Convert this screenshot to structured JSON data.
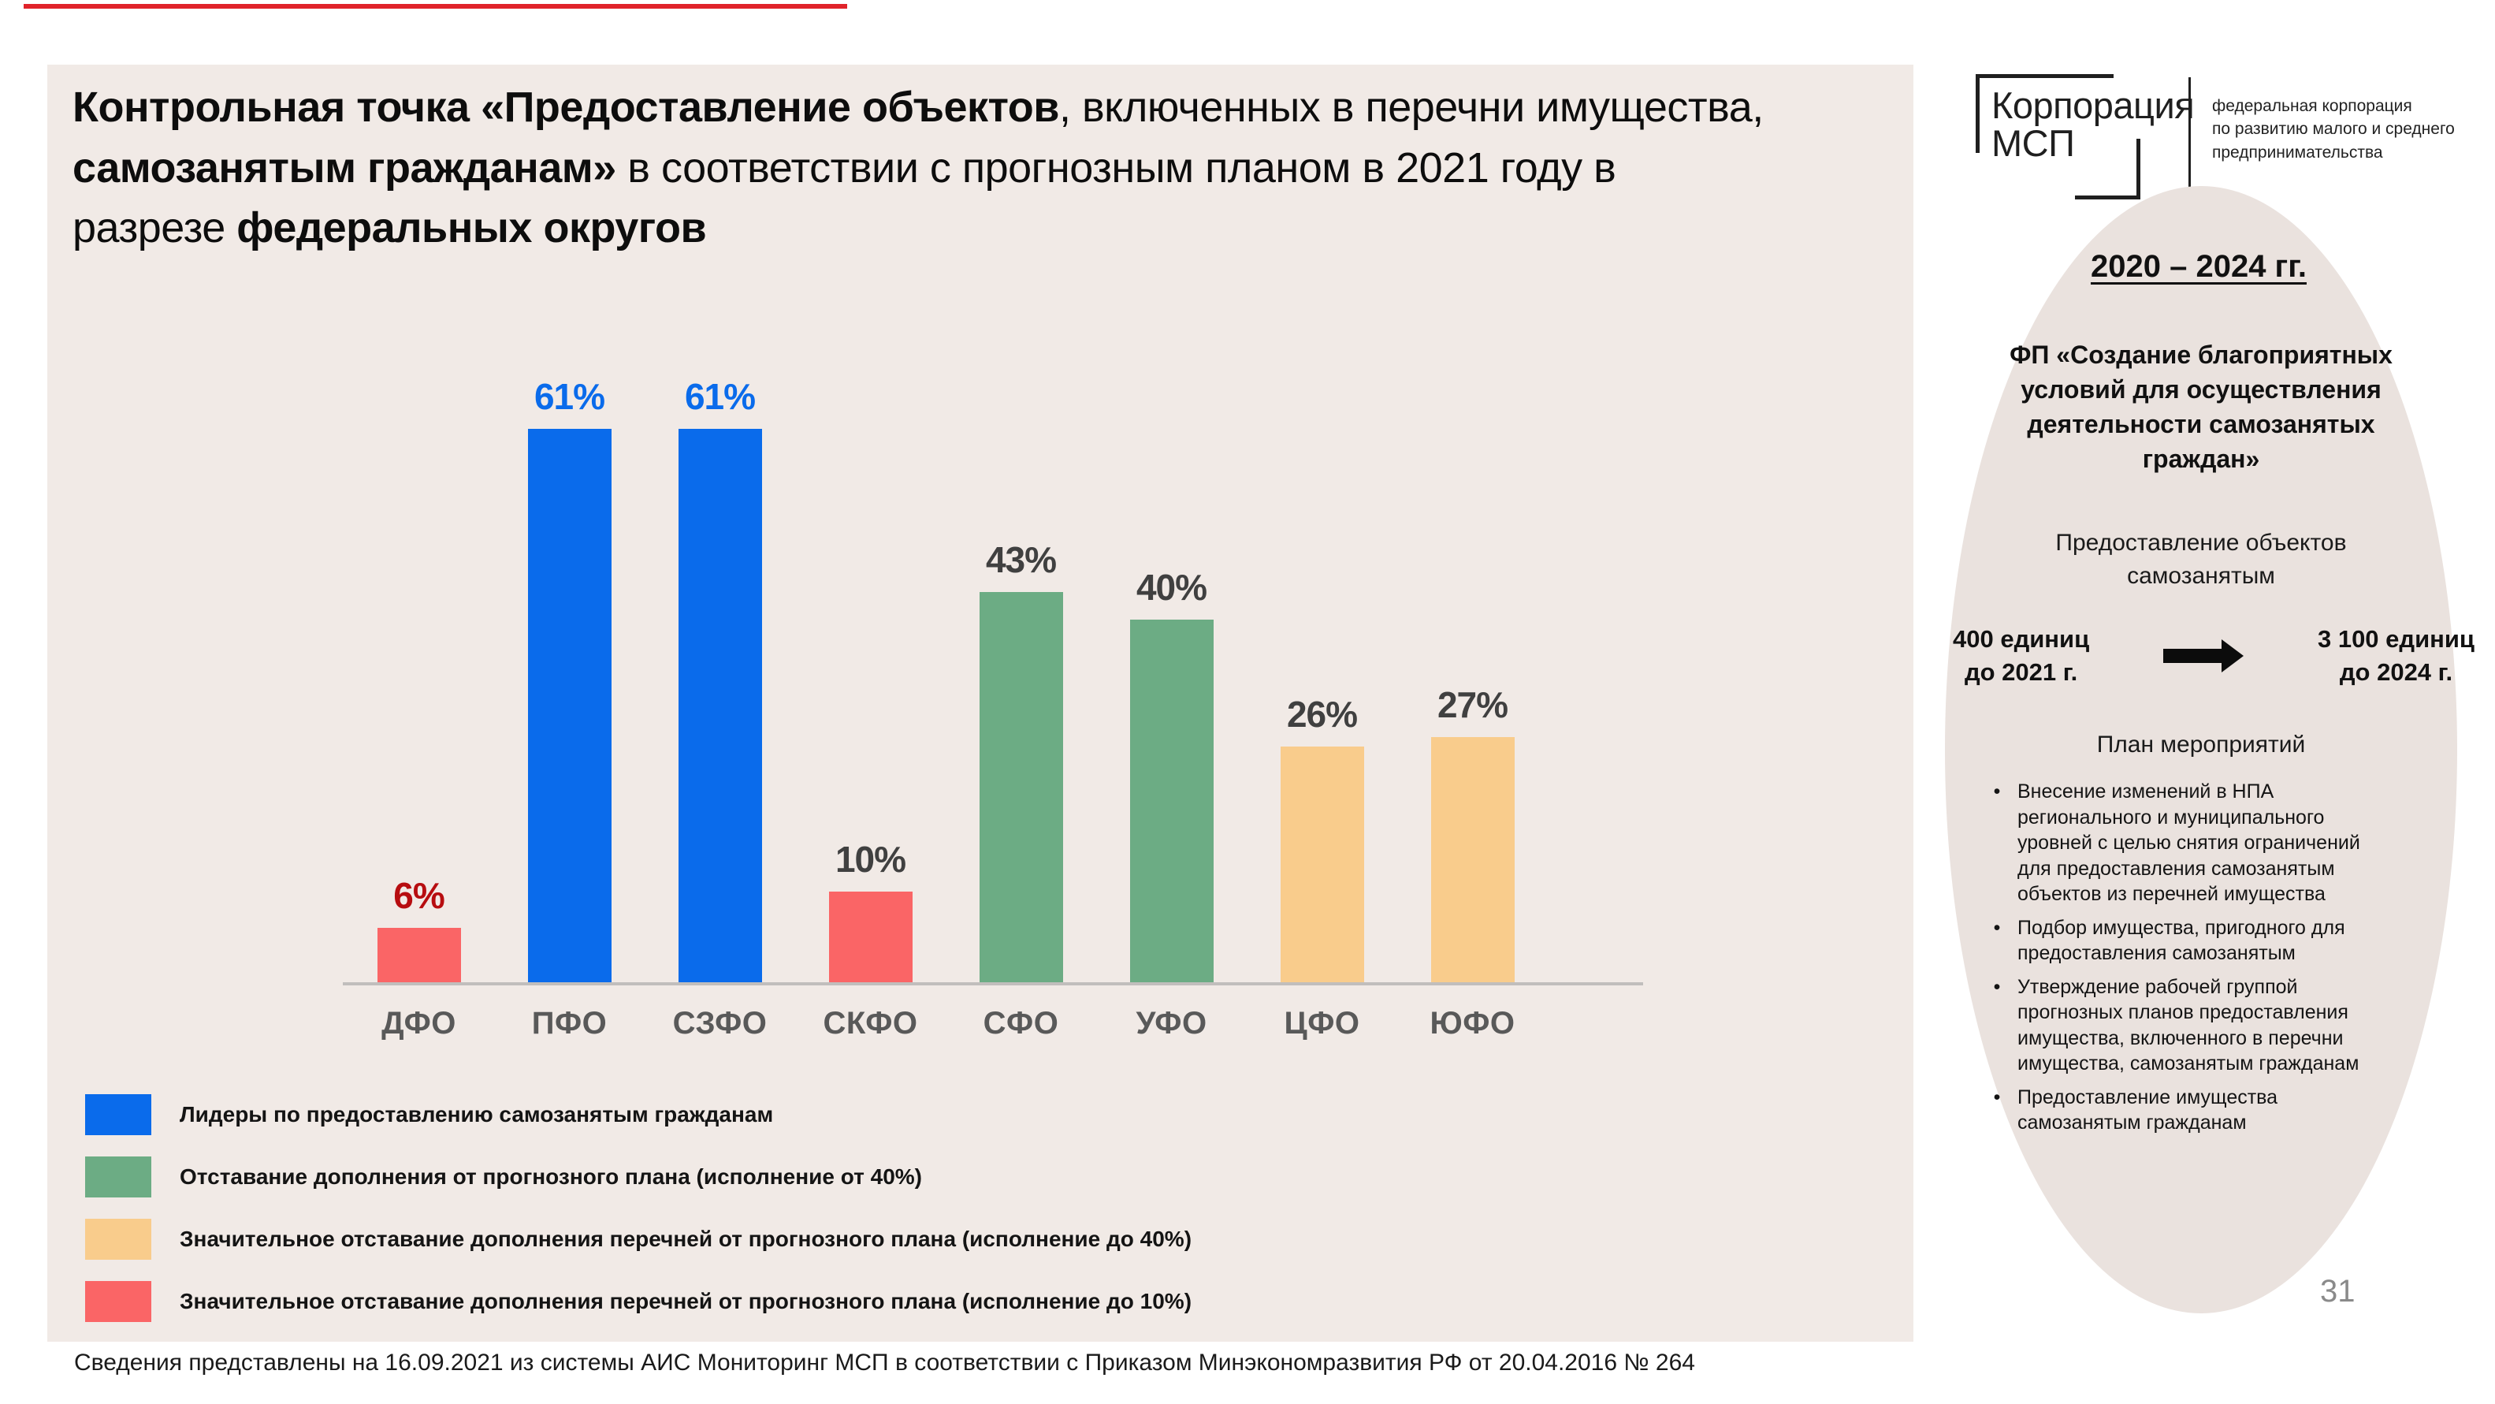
{
  "title": {
    "segments": [
      {
        "t": "Контрольная точка «Предоставление объектов",
        "b": true
      },
      {
        "t": ", включенных в перечни имущества, ",
        "b": false
      },
      {
        "t": "самозанятым гражданам»",
        "b": true
      },
      {
        "t": " в соответствии с прогнозным планом в 2021 году в разрезе ",
        "b": false
      },
      {
        "t": "федеральных округов",
        "b": true
      }
    ]
  },
  "logo": {
    "name_line1": "Корпорация",
    "name_line2": "МСП",
    "tagline": "федеральная корпорация\nпо развитию малого и среднего\nпредпринимательства"
  },
  "chart_data": {
    "type": "bar",
    "title": "Контрольная точка «Предоставление объектов, включенных в перечни имущества, самозанятым гражданам» в соответствии с прогнозным планом в 2021 году в разрезе федеральных округов",
    "categories": [
      "ДФО",
      "ПФО",
      "СЗФО",
      "СКФО",
      "СФО",
      "УФО",
      "ЦФО",
      "ЮФО"
    ],
    "values": [
      6,
      61,
      61,
      10,
      43,
      40,
      26,
      27
    ],
    "unit": "%",
    "bar_colors": [
      "#fa6566",
      "#0a6beb",
      "#0a6beb",
      "#fa6566",
      "#6cac84",
      "#6cac84",
      "#f9cc8c",
      "#f9cc8c"
    ],
    "label_colors": [
      "#b70d10",
      "#0a6beb",
      "#0a6beb",
      "#404040",
      "#404040",
      "#404040",
      "#404040",
      "#404040"
    ],
    "ylim": [
      0,
      65
    ],
    "grid": false,
    "xlabel": "",
    "ylabel": "",
    "legend_position": "bottom-left"
  },
  "legend": [
    {
      "color": "#0a6beb",
      "label": "Лидеры по предоставлению самозанятым гражданам"
    },
    {
      "color": "#6cac84",
      "label": "Отставание дополнения от прогнозного плана (исполнение от 40%)"
    },
    {
      "color": "#f9cc8c",
      "label": "Значительное отставание дополнения перечней от прогнозного плана (исполнение до 40%)"
    },
    {
      "color": "#fa6566",
      "label": "Значительное отставание дополнения перечней от прогнозного плана (исполнение до 10%)"
    }
  ],
  "sidebar": {
    "period": "2020 – 2024 гг.",
    "program": "ФП «Создание благоприятных условий для осуществления деятельности самозанятых граждан»",
    "subtitle": "Предоставление объектов самозанятым",
    "from_unit": "400 единиц\nдо 2021 г.",
    "to_unit": "3 100 единиц\nдо 2024 г.",
    "plan_title": "План мероприятий",
    "plan_items": [
      "Внесение изменений в НПА регионального и муниципального уровней с целью снятия ограничений для предоставления самозанятым объектов из перечней имущества",
      "Подбор имущества, пригодного для предоставления самозанятым",
      "Утверждение рабочей группой прогнозных планов предоставления имущества, включенного в перечни имущества, самозанятым гражданам",
      "Предоставление имущества самозанятым гражданам"
    ]
  },
  "footer": "Сведения представлены на 16.09.2021 из системы АИС Мониторинг МСП в соответствии с Приказом Минэкономразвития РФ от 20.04.2016 № 264",
  "page_number": "31"
}
